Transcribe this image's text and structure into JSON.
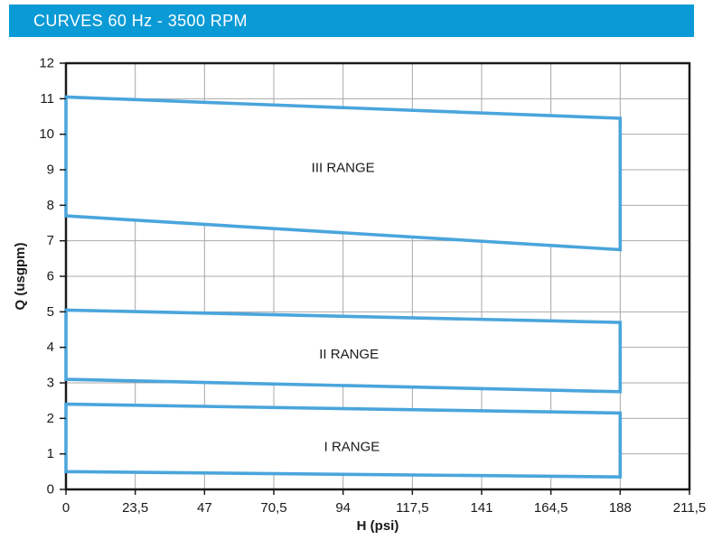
{
  "header": {
    "title": "CURVES 60 Hz - 3500 RPM",
    "bg_color": "#0a9ad6",
    "text_color": "#ffffff"
  },
  "chart_data": {
    "type": "area",
    "title": "CURVES 60 Hz - 3500 RPM",
    "xlabel": "H (psi)",
    "ylabel": "Q (usgpm)",
    "xlim": [
      0,
      211.5
    ],
    "ylim": [
      0,
      12
    ],
    "grid": true,
    "legend": "none",
    "grid_color": "#a8a8a8",
    "axis_color": "#1a1a1a",
    "band_color": "#4aa5dc",
    "band_fill": "#ffffff",
    "x_ticks": [
      {
        "value": 0,
        "label": "0"
      },
      {
        "value": 23.5,
        "label": "23,5"
      },
      {
        "value": 47,
        "label": "47"
      },
      {
        "value": 70.5,
        "label": "70,5"
      },
      {
        "value": 94,
        "label": "94"
      },
      {
        "value": 117.5,
        "label": "117,5"
      },
      {
        "value": 141,
        "label": "141"
      },
      {
        "value": 164.5,
        "label": "164,5"
      },
      {
        "value": 188,
        "label": "188"
      },
      {
        "value": 211.5,
        "label": "211,5"
      }
    ],
    "y_ticks": [
      {
        "value": 0,
        "label": "0"
      },
      {
        "value": 1,
        "label": "1"
      },
      {
        "value": 2,
        "label": "2"
      },
      {
        "value": 3,
        "label": "3"
      },
      {
        "value": 4,
        "label": "4"
      },
      {
        "value": 5,
        "label": "5"
      },
      {
        "value": 6,
        "label": "6"
      },
      {
        "value": 7,
        "label": "7"
      },
      {
        "value": 8,
        "label": "8"
      },
      {
        "value": 9,
        "label": "9"
      },
      {
        "value": 10,
        "label": "10"
      },
      {
        "value": 11,
        "label": "11"
      },
      {
        "value": 12,
        "label": "12"
      }
    ],
    "series": [
      {
        "name": "III RANGE",
        "upper": [
          [
            0,
            11.05
          ],
          [
            188,
            10.45
          ]
        ],
        "lower": [
          [
            0,
            7.7
          ],
          [
            188,
            6.75
          ]
        ],
        "label_pos": [
          94,
          9.05
        ]
      },
      {
        "name": "II RANGE",
        "upper": [
          [
            0,
            5.05
          ],
          [
            188,
            4.7
          ]
        ],
        "lower": [
          [
            0,
            3.1
          ],
          [
            188,
            2.75
          ]
        ],
        "label_pos": [
          96,
          3.8
        ]
      },
      {
        "name": "I RANGE",
        "upper": [
          [
            0,
            2.4
          ],
          [
            188,
            2.15
          ]
        ],
        "lower": [
          [
            0,
            0.5
          ],
          [
            188,
            0.35
          ]
        ],
        "label_pos": [
          97,
          1.2
        ]
      }
    ]
  }
}
